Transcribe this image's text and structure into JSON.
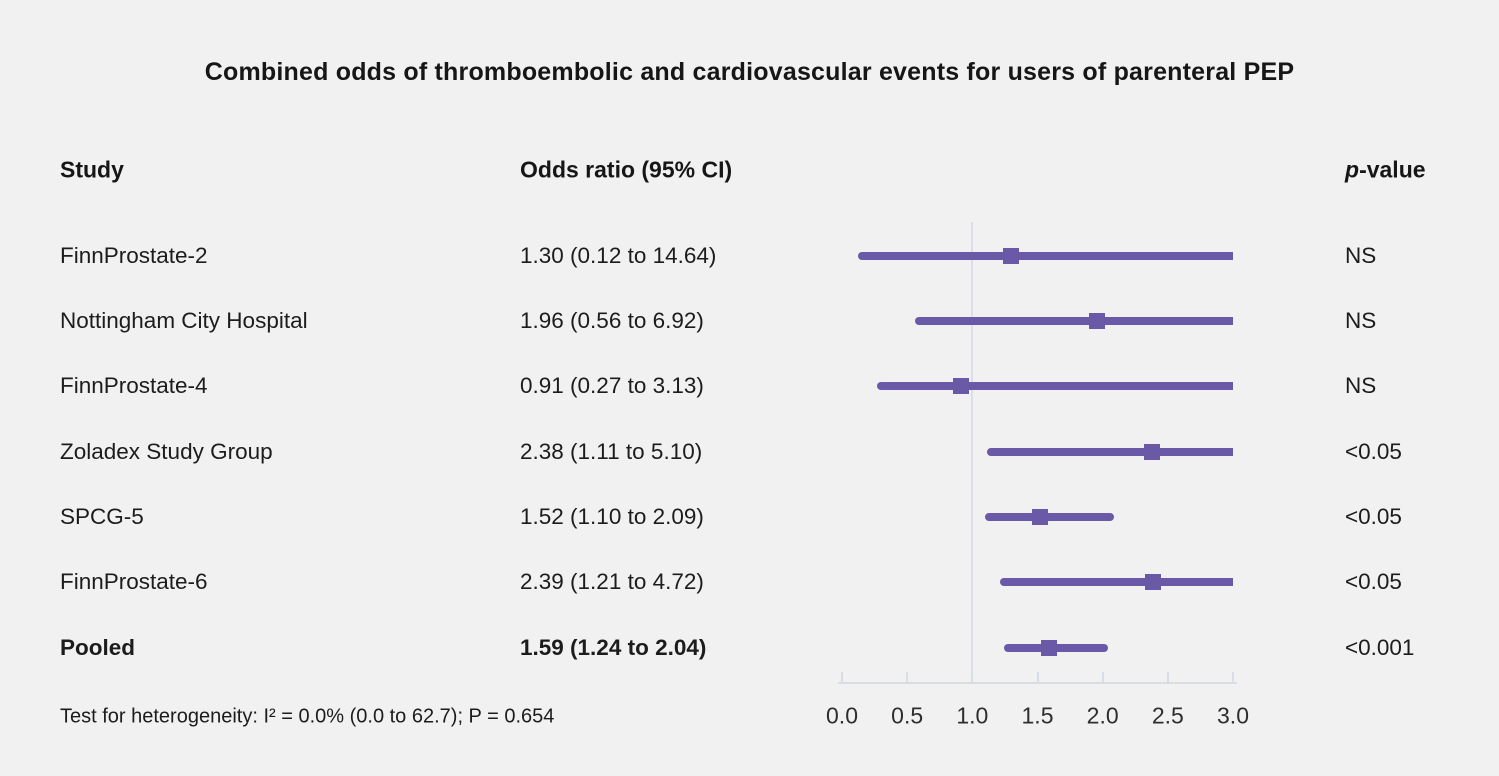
{
  "title": "Combined odds of thromboembolic and cardiovascular events for users of parenteral PEP",
  "columns": {
    "study": "Study",
    "odds_ratio": "Odds ratio (95% CI)",
    "pvalue_italic": "p",
    "pvalue_rest": "-value"
  },
  "footnote": "Test for heterogeneity: I² = 0.0% (0.0 to 62.7); P = 0.654",
  "colors": {
    "background": "#f2f1f1",
    "marker_purple": "#6a59a6",
    "axis_gray": "#d9dde4",
    "text": "#1c1c1c"
  },
  "chart_data": {
    "type": "forest",
    "title": "Combined odds of thromboembolic and cardiovascular events for users of parenteral PEP",
    "xlabel": "",
    "ylabel": "",
    "xlim": [
      0.0,
      3.0
    ],
    "x_ticks": [
      "0.0",
      "0.5",
      "1.0",
      "1.5",
      "2.0",
      "2.5",
      "3.0"
    ],
    "reference_line": 1.0,
    "rows": [
      {
        "study": "FinnProstate-2",
        "or": 1.3,
        "ci_low": 0.12,
        "ci_high": 14.64,
        "or_label": "1.30 (0.12 to 14.64)",
        "pvalue": "NS",
        "bold": false
      },
      {
        "study": "Nottingham City Hospital",
        "or": 1.96,
        "ci_low": 0.56,
        "ci_high": 6.92,
        "or_label": "1.96 (0.56 to 6.92)",
        "pvalue": "NS",
        "bold": false
      },
      {
        "study": "FinnProstate-4",
        "or": 0.91,
        "ci_low": 0.27,
        "ci_high": 3.13,
        "or_label": "0.91 (0.27 to 3.13)",
        "pvalue": "NS",
        "bold": false
      },
      {
        "study": "Zoladex Study Group",
        "or": 2.38,
        "ci_low": 1.11,
        "ci_high": 5.1,
        "or_label": "2.38 (1.11 to 5.10)",
        "pvalue": "<0.05",
        "bold": false
      },
      {
        "study": "SPCG-5",
        "or": 1.52,
        "ci_low": 1.1,
        "ci_high": 2.09,
        "or_label": "1.52 (1.10 to 2.09)",
        "pvalue": "<0.05",
        "bold": false
      },
      {
        "study": "FinnProstate-6",
        "or": 2.39,
        "ci_low": 1.21,
        "ci_high": 4.72,
        "or_label": "2.39 (1.21 to 4.72)",
        "pvalue": "<0.05",
        "bold": false
      },
      {
        "study": "Pooled",
        "or": 1.59,
        "ci_low": 1.24,
        "ci_high": 2.04,
        "or_label": "1.59 (1.24 to 2.04)",
        "pvalue": "<0.001",
        "bold": true
      }
    ]
  }
}
